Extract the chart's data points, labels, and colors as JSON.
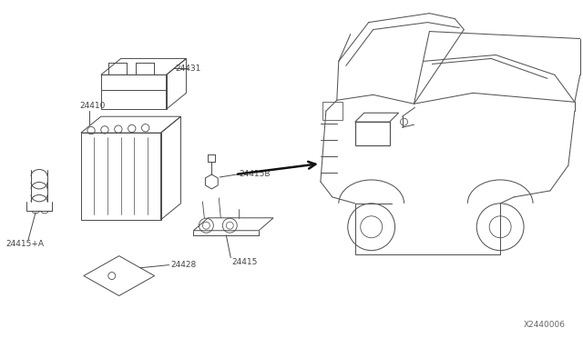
{
  "bg_color": "#ffffff",
  "line_color": "#4a4a4a",
  "car_color": "#555555",
  "text_color": "#444444",
  "diagram_id": "X2440006",
  "label_fontsize": 6.5,
  "parts": [
    "24431",
    "24410",
    "24415B",
    "24415",
    "24415+A",
    "24428"
  ]
}
